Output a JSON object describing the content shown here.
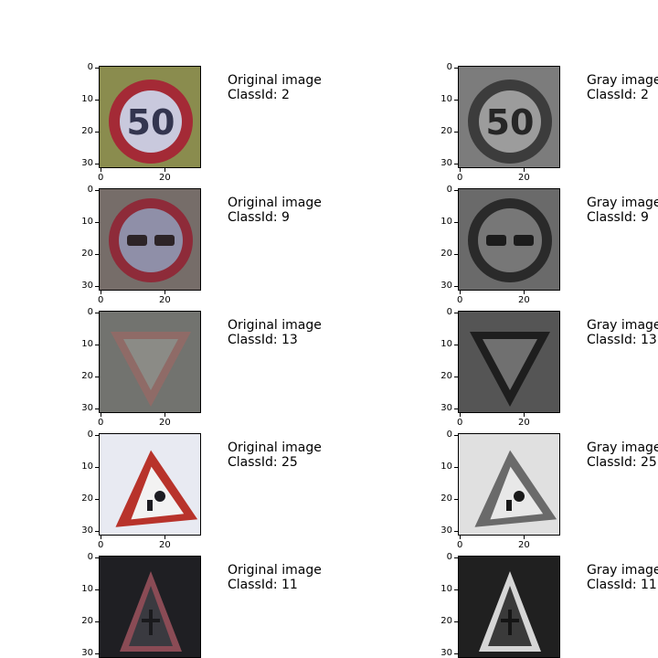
{
  "figure": {
    "rows": [
      {
        "original": {
          "caption_line1": "Original image",
          "caption_line2": "ClassId: 2",
          "sign": "speed-limit-50",
          "colors": {
            "bg": "#8a8c4e",
            "ring": "#a42a36",
            "face": "#c9c9dd",
            "glyph": "#33354f"
          }
        },
        "gray": {
          "caption_line1": "Gray image",
          "caption_line2": "ClassId: 2",
          "sign": "speed-limit-50",
          "colors": {
            "bg": "#7c7c7c",
            "ring": "#3c3c3c",
            "face": "#9c9c9c",
            "glyph": "#262626"
          }
        }
      },
      {
        "original": {
          "caption_line1": "Original image",
          "caption_line2": "ClassId: 9",
          "sign": "no-passing",
          "colors": {
            "bg": "#766d69",
            "ring": "#8e2b39",
            "face": "#8f8fa8",
            "glyph": "#2d2427"
          }
        },
        "gray": {
          "caption_line1": "Gray image",
          "caption_line2": "ClassId: 9",
          "sign": "no-passing",
          "colors": {
            "bg": "#6a6a6a",
            "ring": "#2a2a2a",
            "face": "#777777",
            "glyph": "#1c1c1c"
          }
        }
      },
      {
        "original": {
          "caption_line1": "Original image",
          "caption_line2": "ClassId: 13",
          "sign": "yield",
          "colors": {
            "bg": "#72736f",
            "ring": "#8f6b67",
            "face": "#8b8b86",
            "glyph": "#72736f"
          }
        },
        "gray": {
          "caption_line1": "Gray image",
          "caption_line2": "ClassId: 13",
          "sign": "yield",
          "colors": {
            "bg": "#555555",
            "ring": "#1e1e1e",
            "face": "#707070",
            "glyph": "#555555"
          }
        }
      },
      {
        "original": {
          "caption_line1": "Original image",
          "caption_line2": "ClassId: 25",
          "sign": "road-work",
          "colors": {
            "bg": "#e8eaf2",
            "ring": "#b8332b",
            "face": "#f2f2f2",
            "glyph": "#1c1c22"
          }
        },
        "gray": {
          "caption_line1": "Gray image",
          "caption_line2": "ClassId: 25",
          "sign": "road-work",
          "colors": {
            "bg": "#e0e0e0",
            "ring": "#6a6a6a",
            "face": "#e8e8e8",
            "glyph": "#1a1a1a"
          }
        }
      },
      {
        "original": {
          "caption_line1": "Original image",
          "caption_line2": "ClassId: 11",
          "sign": "right-of-way",
          "colors": {
            "bg": "#1f1f23",
            "ring": "#8a4b55",
            "face": "#3a3a40",
            "glyph": "#1a1a1d"
          }
        },
        "gray": {
          "caption_line1": "Gray image",
          "caption_line2": "ClassId: 11",
          "sign": "right-of-way",
          "colors": {
            "bg": "#202020",
            "ring": "#d6d6d6",
            "face": "#3a3a3a",
            "glyph": "#151515"
          }
        }
      }
    ]
  },
  "chart_data": {
    "type": "image-grid",
    "title": "",
    "columns": [
      "Original image",
      "Gray image"
    ],
    "class_ids": [
      2,
      9,
      13,
      25,
      11
    ],
    "image_size": [
      32,
      32
    ],
    "x_ticks": [
      0,
      20
    ],
    "y_ticks": [
      0,
      10,
      20,
      30
    ],
    "xlim": [
      -0.5,
      31.5
    ],
    "ylim": [
      31.5,
      -0.5
    ]
  }
}
